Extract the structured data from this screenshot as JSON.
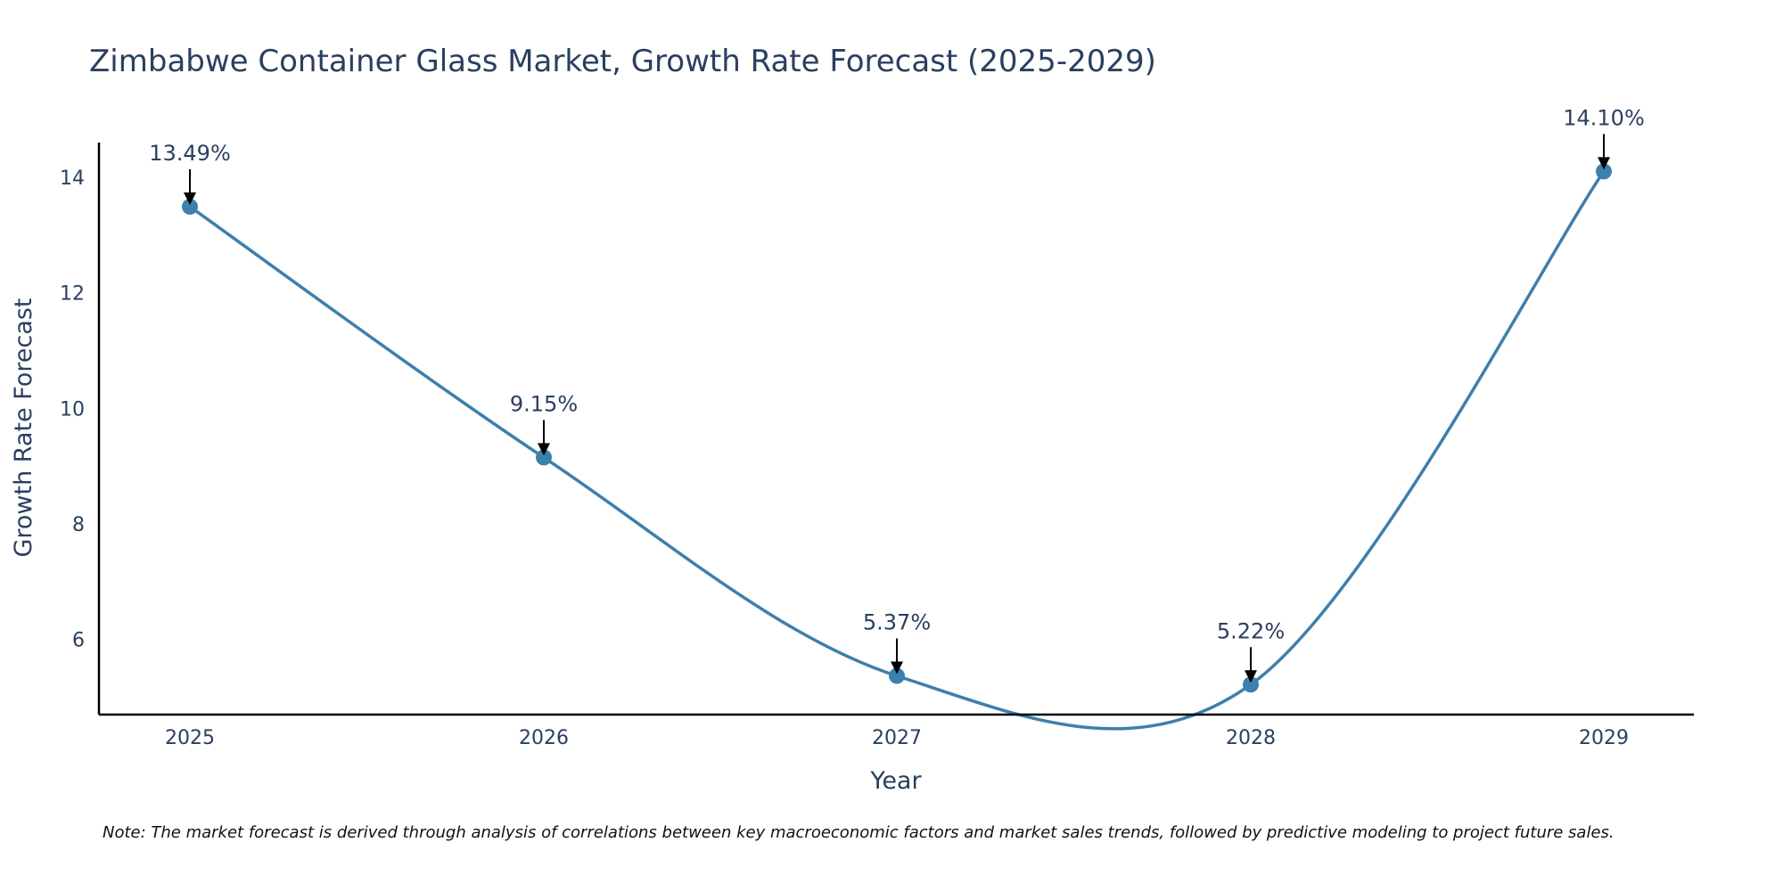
{
  "chart_data": {
    "type": "line",
    "title": "Zimbabwe Container Glass Market, Growth Rate Forecast (2025-2029)",
    "xlabel": "Year",
    "ylabel": "Growth Rate Forecast",
    "categories": [
      "2025",
      "2026",
      "2027",
      "2028",
      "2029"
    ],
    "series": [
      {
        "name": "Growth Rate Forecast",
        "values": [
          13.49,
          9.15,
          5.37,
          5.22,
          14.1
        ],
        "labels": [
          "13.49%",
          "9.15%",
          "5.37%",
          "5.22%",
          "14.10%"
        ],
        "color": "#3d7fad",
        "smooth": true
      }
    ],
    "yticks": [
      6,
      8,
      10,
      12,
      14
    ],
    "ylim": [
      4.7,
      14.6
    ],
    "grid": false,
    "legend": "none",
    "note": "Note: The market forecast is derived through analysis of correlations between key macroeconomic factors and market sales trends, followed by predictive modeling to project future sales."
  }
}
